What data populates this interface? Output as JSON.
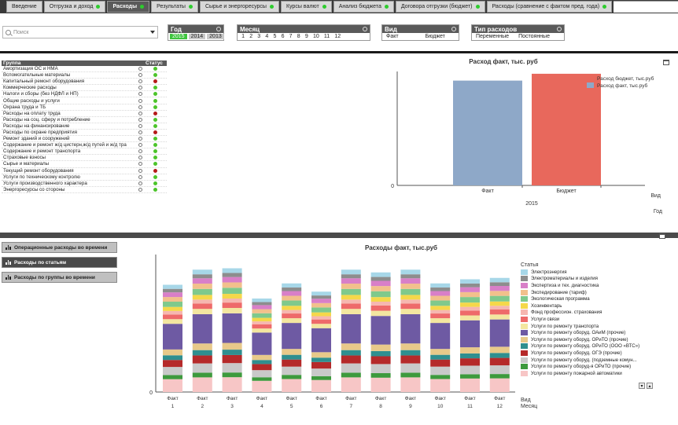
{
  "tabs": [
    {
      "label": "Введение",
      "dot": false,
      "active": false
    },
    {
      "label": "Отгрузка и доход",
      "dot": true,
      "active": false
    },
    {
      "label": "Расходы",
      "dot": true,
      "active": true
    },
    {
      "label": "Результаты",
      "dot": true,
      "active": false
    },
    {
      "label": "Сырье и энергоресурсы",
      "dot": true,
      "active": false
    },
    {
      "label": "Курсы валют",
      "dot": true,
      "active": false
    },
    {
      "label": "Анализ бюджета",
      "dot": true,
      "active": false
    },
    {
      "label": "Договора отгрузки (бюджет)",
      "dot": true,
      "active": false
    },
    {
      "label": "Расходы (сравнение с фактом пред. года)",
      "dot": true,
      "active": false
    }
  ],
  "filters": {
    "search_placeholder": "Поиск",
    "year": {
      "title": "Год",
      "values": [
        "2015",
        "2014",
        "2013"
      ],
      "selected": "2015"
    },
    "month": {
      "title": "Месяц",
      "values": [
        "1",
        "2",
        "3",
        "4",
        "5",
        "6",
        "7",
        "8",
        "9",
        "10",
        "11",
        "12"
      ]
    },
    "view": {
      "title": "Вид",
      "values": [
        "Факт",
        "Бюджет"
      ]
    },
    "expense_type": {
      "title": "Тип расходов",
      "values": [
        "Переменные",
        "Постоянные"
      ]
    }
  },
  "table": {
    "col_group": "Группа",
    "col_status": "Статус",
    "rows": [
      {
        "name": "Амортизация ОС и НМА",
        "status": "green"
      },
      {
        "name": "Вспомогательные материалы",
        "status": "green"
      },
      {
        "name": "Капитальный ремонт оборудования",
        "status": "red"
      },
      {
        "name": "Коммерческие расходы",
        "status": "green"
      },
      {
        "name": "Налоги и сборы (без НДФЛ и НП)",
        "status": "green"
      },
      {
        "name": "Общие расходы и услуги",
        "status": "green"
      },
      {
        "name": "Охрана труда и ТБ",
        "status": "green"
      },
      {
        "name": "Расходы на оплату труда",
        "status": "red"
      },
      {
        "name": "Расходы на соц. сферу и потребление",
        "status": "green"
      },
      {
        "name": "Расходы на финансирование",
        "status": "green"
      },
      {
        "name": "Расходы по охране предприятия",
        "status": "red"
      },
      {
        "name": "Ремонт зданий и сооружений",
        "status": "green"
      },
      {
        "name": "Содержание и ремонт ж/д цистерн,ж/д путей и ж/д тра",
        "status": "green"
      },
      {
        "name": "Содержание и ремонт транспорта",
        "status": "green"
      },
      {
        "name": "Страховые взносы",
        "status": "green"
      },
      {
        "name": "Сырье и материалы",
        "status": "green"
      },
      {
        "name": "Текущий ремонт оборудования",
        "status": "red"
      },
      {
        "name": "Услуги по техническому контролю",
        "status": "green"
      },
      {
        "name": "Услуги производственного характера",
        "status": "green"
      },
      {
        "name": "Энергоресурсы со стороны",
        "status": "green"
      }
    ]
  },
  "status_colors": {
    "green": "#4cc42a",
    "red": "#b51a1a"
  },
  "side_buttons": [
    {
      "label": "Операционные расходы во времени",
      "active": false
    },
    {
      "label": "Расходы по статьям",
      "active": true
    },
    {
      "label": "Расходы по группы во времени",
      "active": false
    }
  ],
  "chart_data": [
    {
      "type": "bar",
      "title": "Расход факт, тыс. руб",
      "categories": [
        "Факт",
        "Бюджет"
      ],
      "group_label": "2015",
      "values": [
        0.92,
        0.98
      ],
      "colors": [
        "#8ea8c8",
        "#e8685c"
      ],
      "legend": [
        {
          "name": "Расход бюджет, тыс.руб",
          "color": "#e8685c"
        },
        {
          "name": "Расход факт, тыс.руб",
          "color": "#8ea8c8"
        }
      ],
      "y_tick": "0",
      "x_dim_labels": [
        "Вид",
        "Год"
      ]
    },
    {
      "type": "bar",
      "title": "Расходы факт, тыс.руб",
      "stacked": true,
      "categories": [
        "1",
        "2",
        "3",
        "4",
        "5",
        "6",
        "7",
        "8",
        "9",
        "10",
        "11",
        "12"
      ],
      "category_sublabel": "Факт",
      "totals": [
        0.78,
        0.89,
        0.9,
        0.68,
        0.79,
        0.73,
        0.89,
        0.87,
        0.89,
        0.79,
        0.82,
        0.83
      ],
      "y_tick": "0",
      "legend_title": "Статья",
      "x_dim_labels": [
        "Вид",
        "Месяц"
      ],
      "series": [
        {
          "name": "Электроэнергия",
          "color": "#a7d7e8"
        },
        {
          "name": "Электроматериалы и изделия",
          "color": "#8d8d8d"
        },
        {
          "name": "Экспертиза и тех. диагностика",
          "color": "#d87fc8"
        },
        {
          "name": "Экспедирование (тариф)",
          "color": "#f2c08c"
        },
        {
          "name": "Экологическая программа",
          "color": "#7fc98c"
        },
        {
          "name": "Хозинвентарь",
          "color": "#f5d84a"
        },
        {
          "name": "Фонд профессион. страхования",
          "color": "#f6b7b0"
        },
        {
          "name": "Услуги связи",
          "color": "#ee6a6a"
        },
        {
          "name": "Услуги по ремонту транспорта",
          "color": "#f3e6a0"
        },
        {
          "name": "Услуги по ремонту оборуд. ОАиМ (прочие)",
          "color": "#6e5aa3"
        },
        {
          "name": "Услуги по ремонту оборуд. ОРиТО (прочие)",
          "color": "#e8c98a"
        },
        {
          "name": "Услуги по ремонту оборуд. ОРиТО (ООО «ВТС»)",
          "color": "#2f8f8f"
        },
        {
          "name": "Услуги по ремонту оборуд. ОГЭ (прочие)",
          "color": "#b52a2a"
        },
        {
          "name": "Услуги по ремонту оборуд. (подземные комун...",
          "color": "#c9c9c9"
        },
        {
          "name": "Услуги по ремонту оборуд-я ОРиТО (прочие)",
          "color": "#3d9a3d"
        },
        {
          "name": "Услуги по ремонту пожарной автоматики",
          "color": "#f7c6c6"
        }
      ]
    }
  ]
}
